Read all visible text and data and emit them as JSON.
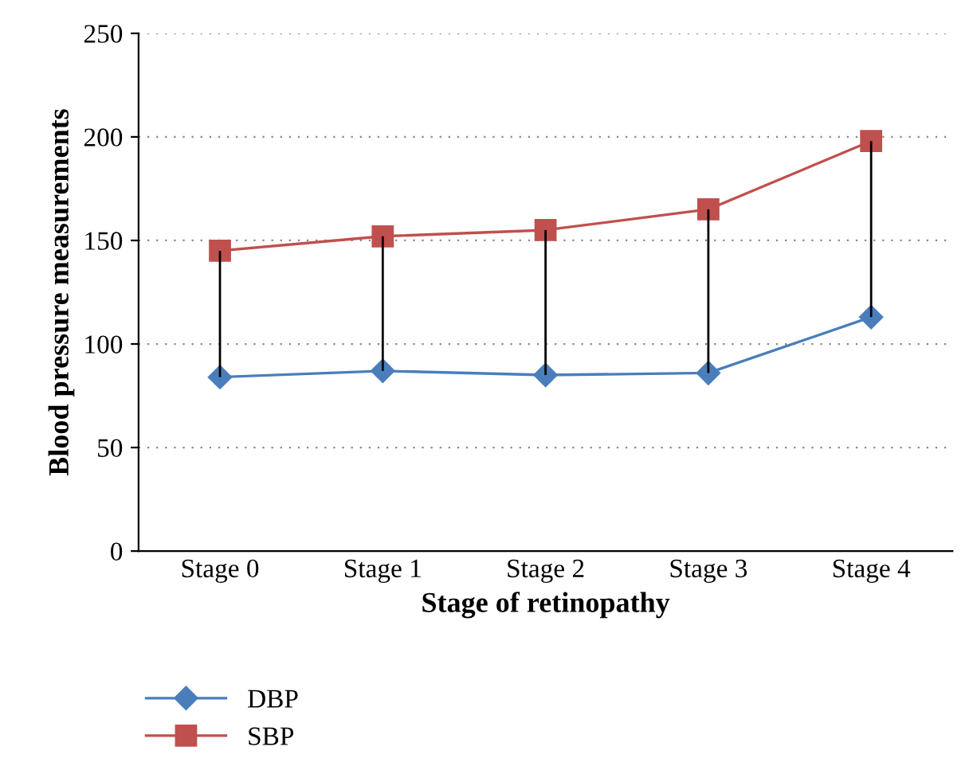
{
  "chart_data": {
    "type": "line",
    "xlabel": "Stage of retinopathy",
    "ylabel": "Blood pressure measurements",
    "categories": [
      "Stage 0",
      "Stage 1",
      "Stage 2",
      "Stage 3",
      "Stage 4"
    ],
    "series": [
      {
        "name": "DBP",
        "color": "#4a7ebb",
        "marker": "diamond",
        "values": [
          84,
          87,
          85,
          86,
          113
        ]
      },
      {
        "name": "SBP",
        "color": "#c0504d",
        "marker": "square",
        "values": [
          145,
          152,
          155,
          165,
          198
        ],
        "errors": [
          [
            84,
            145
          ],
          [
            87,
            152
          ],
          [
            85,
            155
          ],
          [
            86,
            165
          ],
          [
            113,
            198
          ]
        ]
      }
    ],
    "ylim": [
      0,
      250
    ],
    "yticks": [
      0,
      50,
      100,
      150,
      200,
      250
    ],
    "grid": "y",
    "legend": "bottom left",
    "line_style": "solid"
  }
}
